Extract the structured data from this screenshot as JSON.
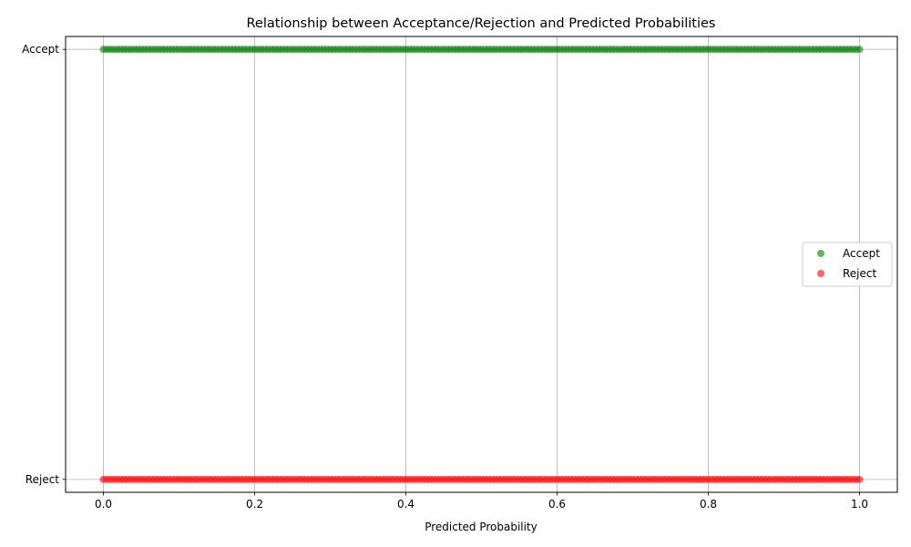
{
  "chart_data": {
    "type": "scatter",
    "title": "Relationship between Acceptance/Rejection and Predicted Probabilities",
    "xlabel": "Predicted Probability",
    "ylabel": "",
    "xlim": [
      -0.05,
      1.05
    ],
    "xticks": [
      "0.0",
      "0.2",
      "0.4",
      "0.6",
      "0.8",
      "1.0"
    ],
    "xtick_values": [
      0.0,
      0.2,
      0.4,
      0.6,
      0.8,
      1.0
    ],
    "yticks": [
      "Reject",
      "Accept"
    ],
    "ytick_values": [
      0,
      1
    ],
    "ylim": [
      -0.03,
      1.03
    ],
    "grid": true,
    "legend": {
      "placement": "center-right"
    },
    "series": [
      {
        "name": "Accept",
        "y": 1,
        "x_min": 0.0,
        "x_max": 1.0,
        "color": "#008000",
        "alpha": 0.6
      },
      {
        "name": "Reject",
        "y": 0,
        "x_min": 0.0,
        "x_max": 1.0,
        "color": "#ff0000",
        "alpha": 0.6
      }
    ]
  }
}
